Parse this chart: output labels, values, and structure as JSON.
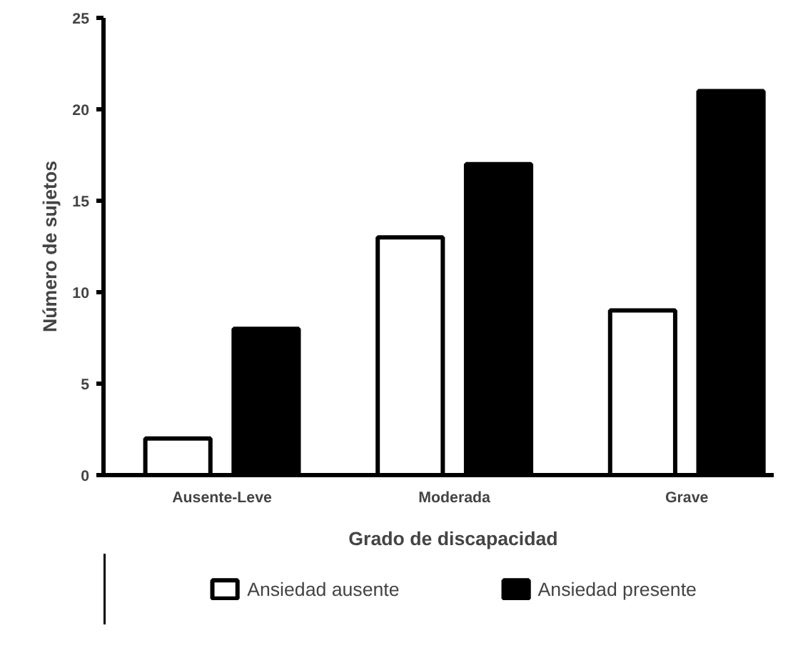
{
  "chart_data": {
    "type": "bar",
    "xlabel": "Grado de discapacidad",
    "ylabel": "Número de sujetos",
    "categories": [
      "Ausente-Leve",
      "Moderada",
      "Grave"
    ],
    "series": [
      {
        "name": "Ansiedad ausente",
        "color": "#ffffff",
        "values": [
          2,
          13,
          9
        ]
      },
      {
        "name": "Ansiedad presente",
        "color": "#000000",
        "values": [
          8,
          17,
          21
        ]
      }
    ],
    "ylim": [
      0,
      25
    ],
    "yticks": [
      0,
      5,
      10,
      15,
      20,
      25
    ],
    "grid": false,
    "legend": "bottom"
  }
}
